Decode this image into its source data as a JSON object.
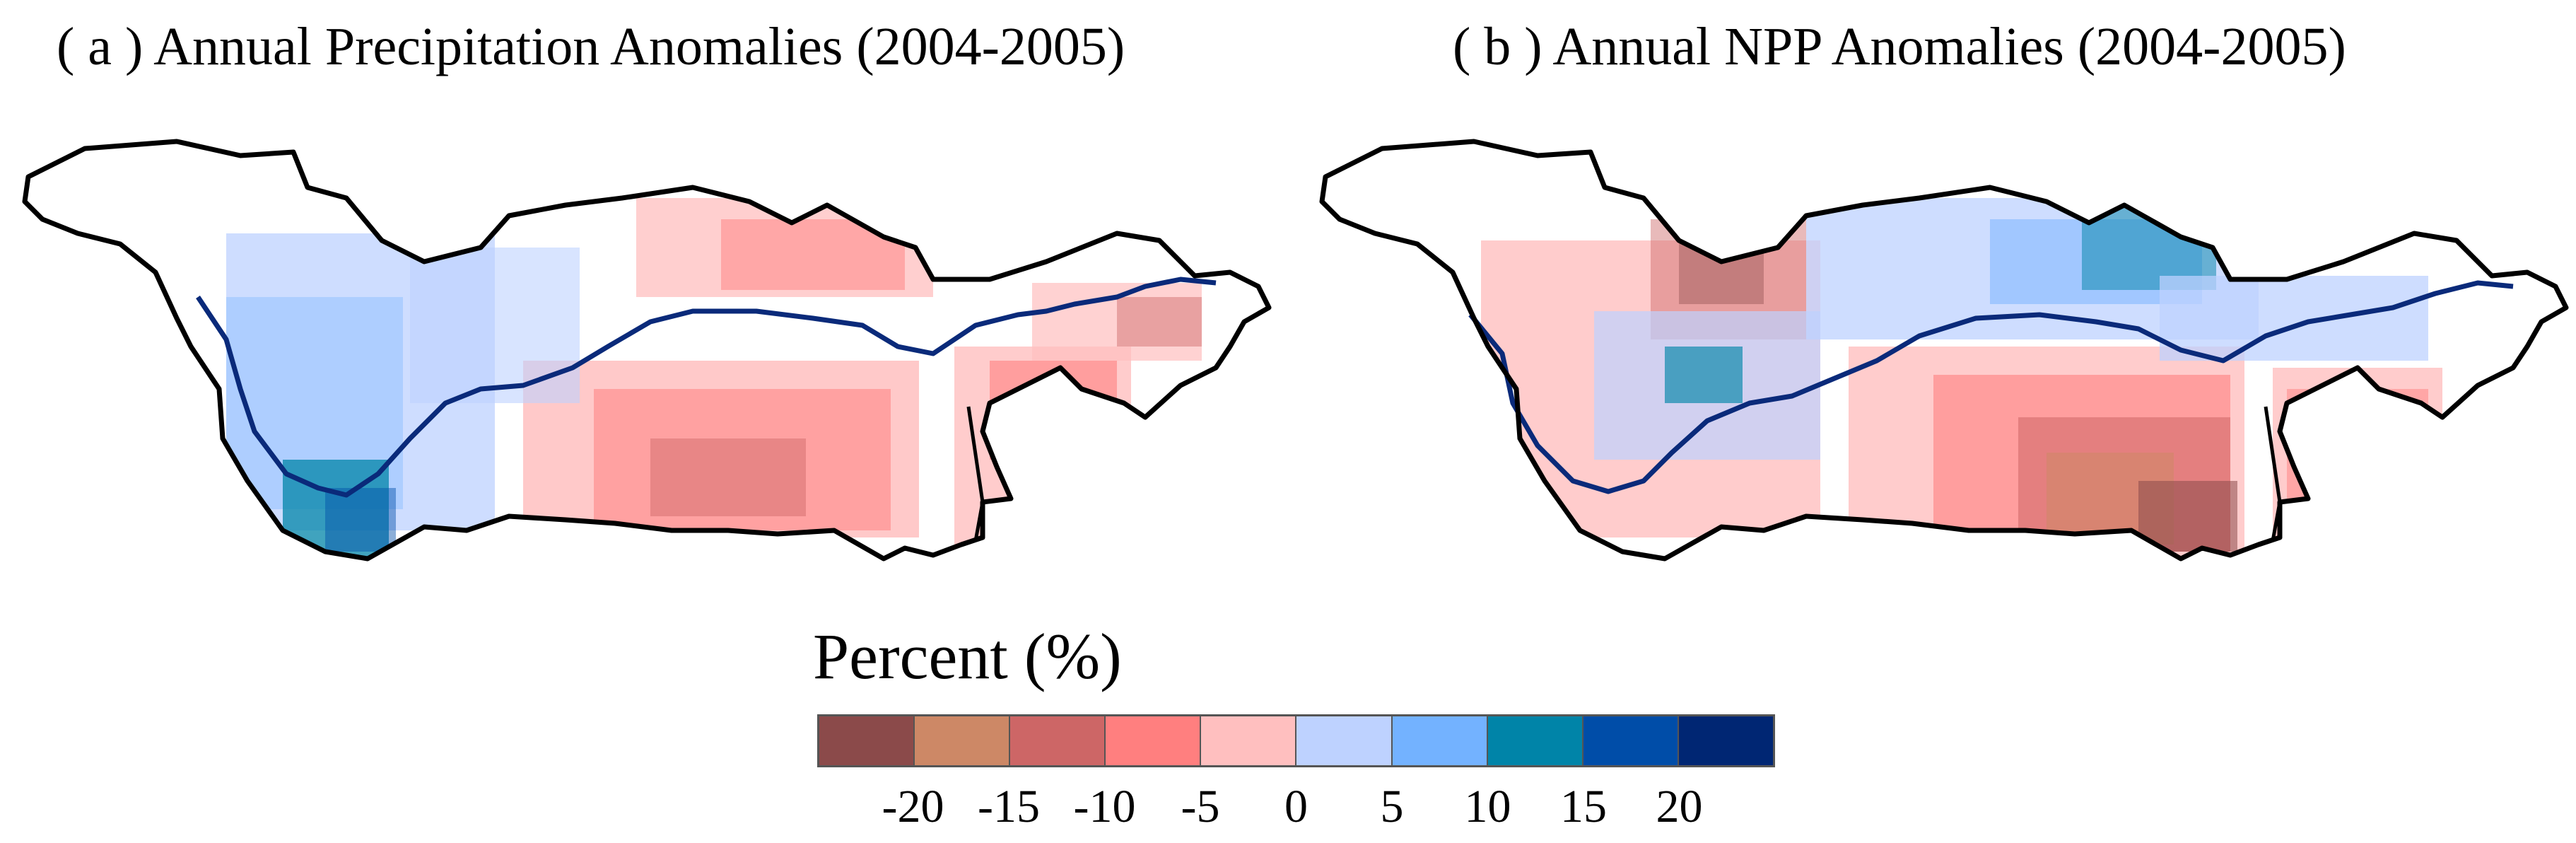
{
  "panels": [
    {
      "label": "( a ) Annual Precipitation Anomalies (2004-2005)"
    },
    {
      "label": "( b ) Annual NPP Anomalies (2004-2005)"
    }
  ],
  "legend": {
    "title": "Percent (%)",
    "colors": [
      "#8b4a4a",
      "#cd8866",
      "#cd6666",
      "#ff7f7f",
      "#ffbfbf",
      "#bed2ff",
      "#73b2ff",
      "#0084a8",
      "#004da8",
      "#002673"
    ],
    "ticks": [
      "-20",
      "-15",
      "-10",
      "-5",
      "0",
      "5",
      "10",
      "15",
      "20"
    ]
  },
  "colors": {
    "boundary": "#000000",
    "river": "#0a2a7a",
    "background": "#ffffff"
  }
}
